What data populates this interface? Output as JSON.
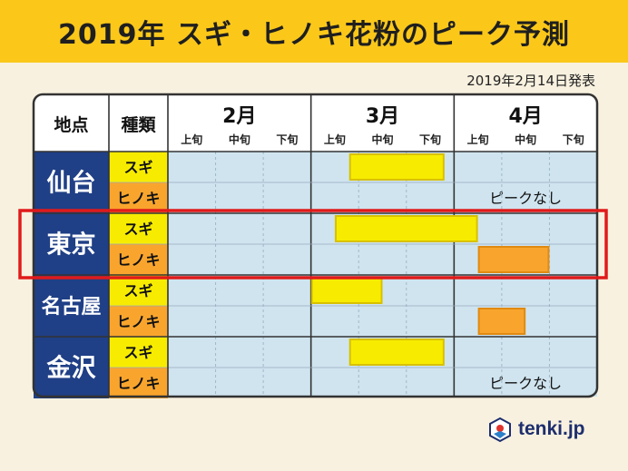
{
  "title": "2019年 スギ・ヒノキ花粉のピーク予測",
  "announcement": "2019年2月14日発表",
  "brand": "tenki.jp",
  "header": {
    "location": "地点",
    "type": "種類",
    "months": [
      "2月",
      "3月",
      "4月"
    ],
    "periods": [
      "上旬",
      "中旬",
      "下旬"
    ]
  },
  "colors": {
    "cedar": "#f7ec00",
    "cypress": "#f9a52d",
    "city_bg": "#1f3f86",
    "cell_bg": "#cfe4ef",
    "highlight": "#e01a1a"
  },
  "chart_data": {
    "type": "table",
    "timeline": [
      "2月上旬",
      "2月中旬",
      "2月下旬",
      "3月上旬",
      "3月中旬",
      "3月下旬",
      "4月上旬",
      "4月中旬",
      "4月下旬"
    ],
    "rows": [
      {
        "city": "仙台",
        "cedar": {
          "label": "スギ",
          "peak": [
            3.8,
            5.8
          ]
        },
        "cypress": {
          "label": "ヒノキ",
          "peak": null,
          "note": "ピークなし"
        }
      },
      {
        "city": "東京",
        "highlighted": true,
        "cedar": {
          "label": "スギ",
          "peak": [
            3.5,
            6.5
          ]
        },
        "cypress": {
          "label": "ヒノキ",
          "peak": [
            6.5,
            8.0
          ]
        }
      },
      {
        "city": "名古屋",
        "cedar": {
          "label": "スギ",
          "peak": [
            3.0,
            4.5
          ]
        },
        "cypress": {
          "label": "ヒノキ",
          "peak": [
            6.5,
            7.5
          ]
        }
      },
      {
        "city": "金沢",
        "cedar": {
          "label": "スギ",
          "peak": [
            3.8,
            5.8
          ]
        },
        "cypress": {
          "label": "ヒノキ",
          "peak": null,
          "note": "ピークなし"
        }
      }
    ]
  }
}
